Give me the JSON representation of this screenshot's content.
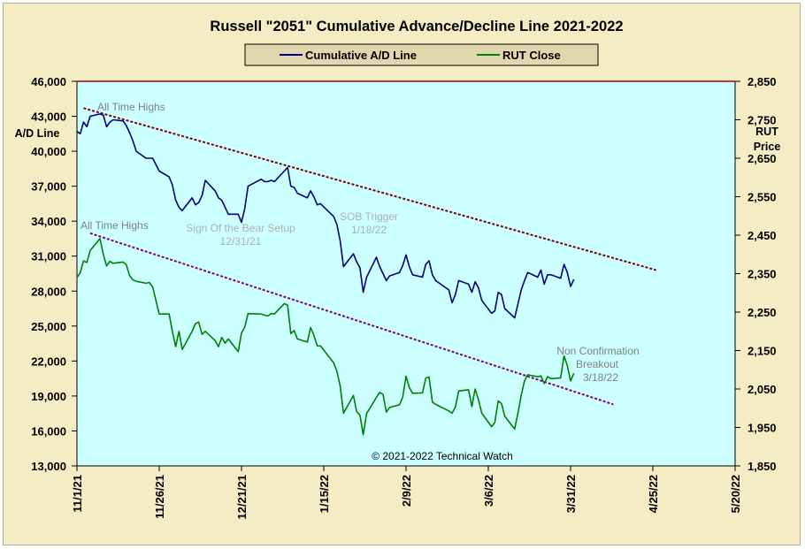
{
  "chart_data": {
    "type": "line",
    "title": "Russell \"2051\" Cumulative Advance/Decline Line 2021-2022",
    "copyright": "© 2021-2022  Technical Watch",
    "legend": {
      "placement": "top-center",
      "background": "#e2d6ae"
    },
    "y_left": {
      "label": "A/D Line",
      "range": [
        13000,
        46000
      ],
      "ticks": [
        "46,000",
        "43,000",
        "40,000",
        "37,000",
        "34,000",
        "31,000",
        "28,000",
        "25,000",
        "22,000",
        "19,000",
        "16,000",
        "13,000"
      ]
    },
    "y_right": {
      "label_lines": [
        "RUT",
        "Price"
      ],
      "range": [
        1850,
        2850
      ],
      "ticks": [
        "2,850",
        "2,750",
        "2,650",
        "2,550",
        "2,450",
        "2,350",
        "2,250",
        "2,150",
        "2,050",
        "1,950",
        "1,850"
      ]
    },
    "x_axis": {
      "start": "2021-11-01",
      "end": "2022-05-20",
      "ticks": [
        "11/1/21",
        "11/26/21",
        "12/21/21",
        "1/15/22",
        "2/9/22",
        "3/6/22",
        "3/31/22",
        "4/25/22",
        "5/20/22"
      ],
      "tick_dates": [
        "2021-11-01",
        "2021-11-26",
        "2021-12-21",
        "2022-01-15",
        "2022-02-09",
        "2022-03-06",
        "2022-03-31",
        "2022-04-25",
        "2022-05-20"
      ]
    },
    "plot_background": "#ccffff",
    "grid": false,
    "series": [
      {
        "name": "Cumulative A/D Line",
        "axis": "left",
        "color": "#000080",
        "points": [
          [
            "2021-11-01",
            41700
          ],
          [
            "2021-11-02",
            41500
          ],
          [
            "2021-11-03",
            42500
          ],
          [
            "2021-11-04",
            42100
          ],
          [
            "2021-11-05",
            43000
          ],
          [
            "2021-11-08",
            43200
          ],
          [
            "2021-11-09",
            43100
          ],
          [
            "2021-11-10",
            42100
          ],
          [
            "2021-11-11",
            42500
          ],
          [
            "2021-11-12",
            42700
          ],
          [
            "2021-11-15",
            42600
          ],
          [
            "2021-11-16",
            42200
          ],
          [
            "2021-11-17",
            41600
          ],
          [
            "2021-11-18",
            40900
          ],
          [
            "2021-11-19",
            40000
          ],
          [
            "2021-11-22",
            39400
          ],
          [
            "2021-11-23",
            39400
          ],
          [
            "2021-11-24",
            39400
          ],
          [
            "2021-11-26",
            38300
          ],
          [
            "2021-11-29",
            37800
          ],
          [
            "2021-11-30",
            37100
          ],
          [
            "2021-12-01",
            35800
          ],
          [
            "2021-12-02",
            35200
          ],
          [
            "2021-12-03",
            34900
          ],
          [
            "2021-12-06",
            36000
          ],
          [
            "2021-12-07",
            35400
          ],
          [
            "2021-12-08",
            35600
          ],
          [
            "2021-12-09",
            36200
          ],
          [
            "2021-12-10",
            37500
          ],
          [
            "2021-12-13",
            36600
          ],
          [
            "2021-12-14",
            36000
          ],
          [
            "2021-12-15",
            35800
          ],
          [
            "2021-12-16",
            35200
          ],
          [
            "2021-12-17",
            34600
          ],
          [
            "2021-12-20",
            34600
          ],
          [
            "2021-12-21",
            33900
          ],
          [
            "2021-12-22",
            35100
          ],
          [
            "2021-12-23",
            37000
          ],
          [
            "2021-12-27",
            37600
          ],
          [
            "2021-12-28",
            37400
          ],
          [
            "2021-12-29",
            37400
          ],
          [
            "2021-12-30",
            37500
          ],
          [
            "2021-12-31",
            37400
          ],
          [
            "2022-01-03",
            38300
          ],
          [
            "2022-01-04",
            38600
          ],
          [
            "2022-01-05",
            37000
          ],
          [
            "2022-01-06",
            36900
          ],
          [
            "2022-01-07",
            36400
          ],
          [
            "2022-01-10",
            36000
          ],
          [
            "2022-01-11",
            36600
          ],
          [
            "2022-01-12",
            36100
          ],
          [
            "2022-01-13",
            35400
          ],
          [
            "2022-01-14",
            35500
          ],
          [
            "2022-01-18",
            34400
          ],
          [
            "2022-01-19",
            33700
          ],
          [
            "2022-01-20",
            32300
          ],
          [
            "2022-01-21",
            30100
          ],
          [
            "2022-01-24",
            31200
          ],
          [
            "2022-01-25",
            30500
          ],
          [
            "2022-01-26",
            30000
          ],
          [
            "2022-01-27",
            27900
          ],
          [
            "2022-01-28",
            29200
          ],
          [
            "2022-01-31",
            30900
          ],
          [
            "2022-02-01",
            30100
          ],
          [
            "2022-02-02",
            29500
          ],
          [
            "2022-02-03",
            28900
          ],
          [
            "2022-02-04",
            29300
          ],
          [
            "2022-02-07",
            29600
          ],
          [
            "2022-02-08",
            30200
          ],
          [
            "2022-02-09",
            31100
          ],
          [
            "2022-02-10",
            30100
          ],
          [
            "2022-02-11",
            29400
          ],
          [
            "2022-02-14",
            29200
          ],
          [
            "2022-02-15",
            30300
          ],
          [
            "2022-02-16",
            30600
          ],
          [
            "2022-02-17",
            29400
          ],
          [
            "2022-02-18",
            28900
          ],
          [
            "2022-02-22",
            28100
          ],
          [
            "2022-02-23",
            27000
          ],
          [
            "2022-02-24",
            27700
          ],
          [
            "2022-02-25",
            28900
          ],
          [
            "2022-02-28",
            28600
          ],
          [
            "2022-03-01",
            27900
          ],
          [
            "2022-03-02",
            28800
          ],
          [
            "2022-03-03",
            28300
          ],
          [
            "2022-03-04",
            27200
          ],
          [
            "2022-03-07",
            26100
          ],
          [
            "2022-03-08",
            26300
          ],
          [
            "2022-03-09",
            27900
          ],
          [
            "2022-03-10",
            27700
          ],
          [
            "2022-03-11",
            26500
          ],
          [
            "2022-03-14",
            25700
          ],
          [
            "2022-03-15",
            26900
          ],
          [
            "2022-03-16",
            28100
          ],
          [
            "2022-03-17",
            28900
          ],
          [
            "2022-03-18",
            29600
          ],
          [
            "2022-03-21",
            29200
          ],
          [
            "2022-03-22",
            29800
          ],
          [
            "2022-03-23",
            28600
          ],
          [
            "2022-03-24",
            29400
          ],
          [
            "2022-03-25",
            29400
          ],
          [
            "2022-03-28",
            29100
          ],
          [
            "2022-03-29",
            30300
          ],
          [
            "2022-03-30",
            29600
          ],
          [
            "2022-03-31",
            28400
          ],
          [
            "2022-04-01",
            29000
          ]
        ]
      },
      {
        "name": "RUT Close",
        "axis": "right",
        "color": "#008000",
        "points": [
          [
            "2021-11-01",
            2340
          ],
          [
            "2021-11-02",
            2352
          ],
          [
            "2021-11-03",
            2383
          ],
          [
            "2021-11-04",
            2379
          ],
          [
            "2021-11-05",
            2410
          ],
          [
            "2021-11-08",
            2441
          ],
          [
            "2021-11-09",
            2400
          ],
          [
            "2021-11-10",
            2370
          ],
          [
            "2021-11-11",
            2382
          ],
          [
            "2021-11-12",
            2377
          ],
          [
            "2021-11-15",
            2380
          ],
          [
            "2021-11-16",
            2373
          ],
          [
            "2021-11-17",
            2345
          ],
          [
            "2021-11-18",
            2334
          ],
          [
            "2021-11-19",
            2330
          ],
          [
            "2021-11-22",
            2325
          ],
          [
            "2021-11-23",
            2327
          ],
          [
            "2021-11-24",
            2315
          ],
          [
            "2021-11-26",
            2245
          ],
          [
            "2021-11-29",
            2245
          ],
          [
            "2021-11-30",
            2199
          ],
          [
            "2021-12-01",
            2160
          ],
          [
            "2021-12-02",
            2200
          ],
          [
            "2021-12-03",
            2153
          ],
          [
            "2021-12-06",
            2200
          ],
          [
            "2021-12-07",
            2220
          ],
          [
            "2021-12-08",
            2224
          ],
          [
            "2021-12-09",
            2192
          ],
          [
            "2021-12-10",
            2200
          ],
          [
            "2021-12-13",
            2176
          ],
          [
            "2021-12-14",
            2160
          ],
          [
            "2021-12-15",
            2184
          ],
          [
            "2021-12-16",
            2169
          ],
          [
            "2021-12-17",
            2180
          ],
          [
            "2021-12-20",
            2147
          ],
          [
            "2021-12-21",
            2196
          ],
          [
            "2021-12-22",
            2211
          ],
          [
            "2021-12-23",
            2246
          ],
          [
            "2021-12-27",
            2245
          ],
          [
            "2021-12-28",
            2242
          ],
          [
            "2021-12-29",
            2240
          ],
          [
            "2021-12-30",
            2246
          ],
          [
            "2021-12-31",
            2245
          ],
          [
            "2022-01-03",
            2272
          ],
          [
            "2022-01-04",
            2268
          ],
          [
            "2022-01-05",
            2194
          ],
          [
            "2022-01-06",
            2202
          ],
          [
            "2022-01-07",
            2180
          ],
          [
            "2022-01-10",
            2172
          ],
          [
            "2022-01-11",
            2210
          ],
          [
            "2022-01-12",
            2190
          ],
          [
            "2022-01-13",
            2162
          ],
          [
            "2022-01-14",
            2162
          ],
          [
            "2022-01-18",
            2118
          ],
          [
            "2022-01-19",
            2096
          ],
          [
            "2022-01-20",
            2057
          ],
          [
            "2022-01-21",
            1987
          ],
          [
            "2022-01-24",
            2033
          ],
          [
            "2022-01-25",
            1991
          ],
          [
            "2022-01-26",
            1982
          ],
          [
            "2022-01-27",
            1931
          ],
          [
            "2022-01-28",
            1986
          ],
          [
            "2022-01-31",
            2028
          ],
          [
            "2022-02-01",
            2041
          ],
          [
            "2022-02-02",
            2036
          ],
          [
            "2022-02-03",
            1990
          ],
          [
            "2022-02-04",
            2002
          ],
          [
            "2022-02-07",
            2009
          ],
          [
            "2022-02-08",
            2029
          ],
          [
            "2022-02-09",
            2083
          ],
          [
            "2022-02-10",
            2054
          ],
          [
            "2022-02-11",
            2039
          ],
          [
            "2022-02-14",
            2040
          ],
          [
            "2022-02-15",
            2078
          ],
          [
            "2022-02-16",
            2081
          ],
          [
            "2022-02-17",
            2016
          ],
          [
            "2022-02-18",
            2010
          ],
          [
            "2022-02-22",
            1993
          ],
          [
            "2022-02-23",
            1987
          ],
          [
            "2022-02-24",
            2003
          ],
          [
            "2022-02-25",
            2045
          ],
          [
            "2022-02-28",
            2048
          ],
          [
            "2022-03-01",
            2004
          ],
          [
            "2022-03-02",
            2050
          ],
          [
            "2022-03-03",
            2023
          ],
          [
            "2022-03-04",
            1987
          ],
          [
            "2022-03-07",
            1952
          ],
          [
            "2022-03-08",
            1963
          ],
          [
            "2022-03-09",
            2019
          ],
          [
            "2022-03-10",
            2012
          ],
          [
            "2022-03-11",
            1979
          ],
          [
            "2022-03-14",
            1946
          ],
          [
            "2022-03-15",
            1987
          ],
          [
            "2022-03-16",
            2034
          ],
          [
            "2022-03-17",
            2071
          ],
          [
            "2022-03-18",
            2087
          ],
          [
            "2022-03-21",
            2082
          ],
          [
            "2022-03-22",
            2084
          ],
          [
            "2022-03-23",
            2064
          ],
          [
            "2022-03-24",
            2082
          ],
          [
            "2022-03-25",
            2077
          ],
          [
            "2022-03-28",
            2079
          ],
          [
            "2022-03-29",
            2136
          ],
          [
            "2022-03-30",
            2111
          ],
          [
            "2022-03-31",
            2071
          ],
          [
            "2022-04-01",
            2091
          ]
        ]
      }
    ],
    "trendlines": [
      {
        "axis": "left",
        "color": "#800000",
        "style": "dashed",
        "points": [
          [
            "2021-11-03",
            43700
          ],
          [
            "2022-04-26",
            29800
          ]
        ]
      },
      {
        "axis": "right",
        "color": "#800080",
        "style": "dashed",
        "points": [
          [
            "2021-11-05",
            2455
          ],
          [
            "2022-04-13",
            2010
          ]
        ]
      }
    ],
    "annotations": [
      {
        "id": "ath-ad",
        "lines": [
          "All Time Highs"
        ],
        "color": "#808080"
      },
      {
        "id": "sob-setup",
        "lines": [
          "Sign Of the Bear  Setup",
          "12/31/21"
        ],
        "color": "#b0b0b0"
      },
      {
        "id": "sob-trigger",
        "lines": [
          "SOB Trigger",
          "1/18/22"
        ],
        "color": "#b0b0b0"
      },
      {
        "id": "ath-rut",
        "lines": [
          "All Time Highs"
        ],
        "color": "#808080"
      },
      {
        "id": "non-confirmation",
        "lines": [
          "Non Confirmation",
          "Breakout",
          "3/18/22"
        ],
        "color": "#808080"
      }
    ]
  }
}
